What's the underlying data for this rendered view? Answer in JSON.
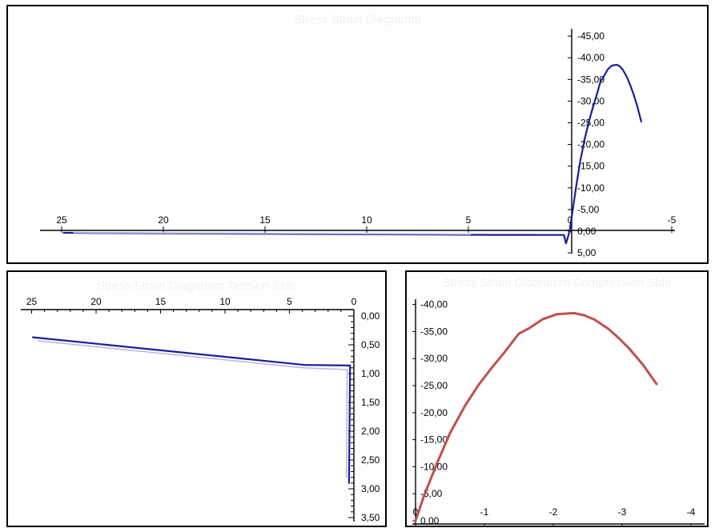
{
  "page": {
    "background": "#ffffff",
    "border_color": "#000000",
    "ghost_text_color": "#f0f0f0",
    "axis_color": "#000000",
    "label_color": "#000000"
  },
  "chart_data": [
    {
      "type": "line",
      "name": "stress-strain-combined",
      "ghost_title": "Stress Strain Diagramm",
      "x_axis": {
        "reversed": true,
        "tick_values": [
          25,
          20,
          15,
          10,
          5,
          0,
          -5
        ],
        "tick_labels": [
          "25",
          "20",
          "15",
          "10",
          "5",
          "0",
          "-5"
        ]
      },
      "y_axis": {
        "inverted": true,
        "side": "right",
        "tick_values": [
          -45,
          -40,
          -35,
          -30,
          -25,
          -20,
          -15,
          -10,
          -5,
          0,
          5
        ],
        "tick_labels": [
          "-45,00",
          "-40,00",
          "-35,00",
          "-30,00",
          "-25,00",
          "-20,00",
          "-15,00",
          "-10,00",
          "-5,00",
          "0,00",
          "5,00"
        ]
      },
      "series": [
        {
          "name": "series-1",
          "color": "#1c1c99",
          "width": 2.2,
          "points": [
            [
              24.9,
              0.37
            ],
            [
              3.8,
              0.85
            ],
            [
              0.3,
              0.86
            ],
            [
              0.2,
              2.8
            ],
            [
              0.05,
              0.5
            ],
            [
              0.0,
              -0.8
            ],
            [
              -0.12,
              -4.5
            ],
            [
              -0.3,
              -10.3
            ],
            [
              -0.5,
              -16.2
            ],
            [
              -0.72,
              -21.3
            ],
            [
              -0.92,
              -25.2
            ],
            [
              -1.1,
              -28.2
            ],
            [
              -1.3,
              -31.3
            ],
            [
              -1.5,
              -34.6
            ],
            [
              -1.65,
              -35.6
            ],
            [
              -1.85,
              -37.3
            ],
            [
              -2.05,
              -38.2
            ],
            [
              -2.3,
              -38.4
            ],
            [
              -2.45,
              -38.0
            ],
            [
              -2.6,
              -37.2
            ],
            [
              -2.8,
              -35.5
            ],
            [
              -2.95,
              -33.8
            ],
            [
              -3.1,
              -31.9
            ],
            [
              -3.3,
              -28.9
            ],
            [
              -3.5,
              -25.3
            ]
          ]
        },
        {
          "name": "series-2",
          "color": "#b2b6e4",
          "width": 1.7,
          "points": [
            [
              24.4,
              0.32
            ],
            [
              15.0,
              0.5
            ],
            [
              10.0,
              0.58
            ],
            [
              4.9,
              0.7
            ]
          ]
        }
      ]
    },
    {
      "type": "line",
      "name": "stress-strain-tension-side",
      "ghost_title": "Stress Strain Diagramm Tension Side",
      "x_axis": {
        "reversed": true,
        "tick_values": [
          25,
          20,
          15,
          10,
          5,
          0
        ],
        "tick_labels": [
          "25",
          "20",
          "15",
          "10",
          "5",
          "0"
        ],
        "minor_step": 1
      },
      "y_axis": {
        "inverted": false,
        "side": "right",
        "tick_values": [
          0,
          0.5,
          1,
          1.5,
          2,
          2.5,
          3,
          3.5
        ],
        "tick_labels": [
          "0,00",
          "0,50",
          "1,00",
          "1,50",
          "2,00",
          "2,50",
          "3,00",
          "3,50"
        ],
        "minor_step": 0.1
      },
      "series": [
        {
          "name": "series-1",
          "color": "#1c1c99",
          "width": 2.2,
          "points": [
            [
              24.9,
              0.37
            ],
            [
              3.8,
              0.85
            ],
            [
              0.3,
              0.86
            ],
            [
              0.38,
              2.9
            ]
          ]
        },
        {
          "name": "series-2",
          "color": "#b2b6e4",
          "width": 1.5,
          "points": [
            [
              24.5,
              0.43
            ],
            [
              3.9,
              0.9
            ],
            [
              0.52,
              0.93
            ],
            [
              0.58,
              2.8
            ]
          ]
        }
      ]
    },
    {
      "type": "line",
      "name": "stress-strain-compression-side",
      "ghost_title": "Stress Strain Diagramm   Compression Side",
      "x_axis": {
        "reversed": true,
        "tick_values": [
          0,
          -1,
          -2,
          -3,
          -4
        ],
        "tick_labels": [
          "0",
          "-1",
          "-2",
          "-3",
          "-4"
        ]
      },
      "y_axis": {
        "inverted": true,
        "side": "left",
        "tick_values": [
          -40,
          -35,
          -30,
          -25,
          -20,
          -15,
          -10,
          -5,
          0
        ],
        "tick_labels": [
          "-40,00",
          "-35,00",
          "-30,00",
          "-25,00",
          "-20,00",
          "-15,00",
          "-10,00",
          "-5,00",
          "0,00"
        ]
      },
      "series": [
        {
          "name": "series-1",
          "color": "#c0504d",
          "width": 3,
          "points": [
            [
              0,
              0
            ],
            [
              -0.12,
              -4.5
            ],
            [
              -0.3,
              -10.3
            ],
            [
              -0.5,
              -16.2
            ],
            [
              -0.72,
              -21.3
            ],
            [
              -0.92,
              -25.2
            ],
            [
              -1.1,
              -28.2
            ],
            [
              -1.3,
              -31.3
            ],
            [
              -1.5,
              -34.6
            ],
            [
              -1.65,
              -35.6
            ],
            [
              -1.85,
              -37.3
            ],
            [
              -2.05,
              -38.2
            ],
            [
              -2.3,
              -38.4
            ],
            [
              -2.45,
              -38.0
            ],
            [
              -2.6,
              -37.2
            ],
            [
              -2.8,
              -35.5
            ],
            [
              -2.95,
              -33.8
            ],
            [
              -3.1,
              -31.9
            ],
            [
              -3.3,
              -28.9
            ],
            [
              -3.5,
              -25.3
            ]
          ]
        }
      ]
    }
  ]
}
